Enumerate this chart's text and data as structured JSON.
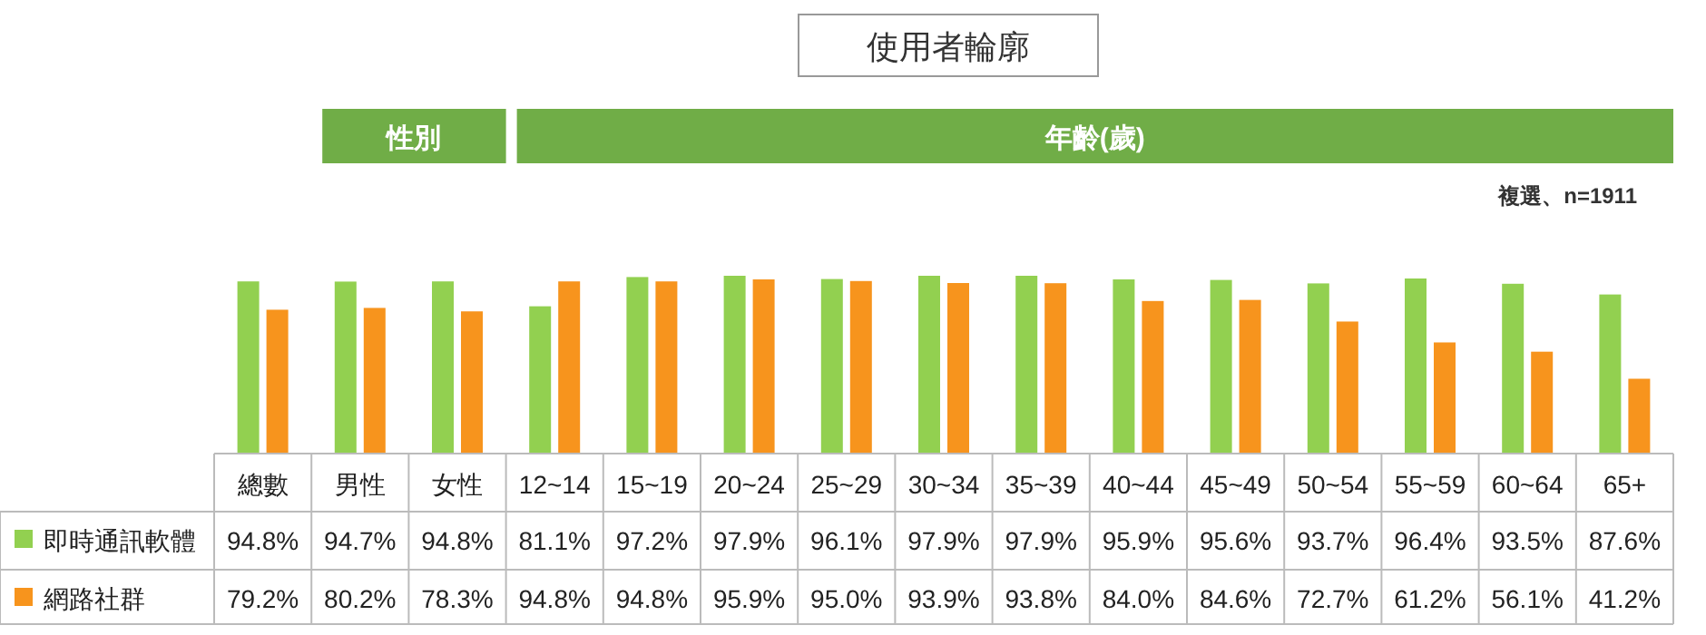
{
  "chart_data": {
    "type": "bar",
    "title": "使用者輪廓",
    "legend": "bottom",
    "annotations": [
      "性別",
      "年齡(歲)",
      "複選、n=1911"
    ],
    "categories": [
      "總數",
      "男性",
      "女性",
      "12~14",
      "15~19",
      "20~24",
      "25~29",
      "30~34",
      "35~39",
      "40~44",
      "45~49",
      "50~54",
      "55~59",
      "60~64",
      "65+"
    ],
    "series": [
      {
        "name": "即時通訊軟體",
        "color": "#92d050",
        "values": [
          94.8,
          94.7,
          94.8,
          81.1,
          97.2,
          97.9,
          96.1,
          97.9,
          97.9,
          95.9,
          95.6,
          93.7,
          96.4,
          93.5,
          87.6
        ],
        "value_labels": [
          "94.8%",
          "94.7%",
          "94.8%",
          "81.1%",
          "97.2%",
          "97.9%",
          "96.1%",
          "97.9%",
          "97.9%",
          "95.9%",
          "95.6%",
          "93.7%",
          "96.4%",
          "93.5%",
          "87.6%"
        ]
      },
      {
        "name": "網路社群",
        "color": "#f7941d",
        "values": [
          79.2,
          80.2,
          78.3,
          94.8,
          94.8,
          95.9,
          95.0,
          93.9,
          93.8,
          84.0,
          84.6,
          72.7,
          61.2,
          56.1,
          41.2
        ],
        "value_labels": [
          "79.2%",
          "80.2%",
          "78.3%",
          "94.8%",
          "94.8%",
          "95.9%",
          "95.0%",
          "93.9%",
          "93.8%",
          "84.0%",
          "84.6%",
          "72.7%",
          "61.2%",
          "56.1%",
          "41.2%"
        ]
      }
    ]
  }
}
